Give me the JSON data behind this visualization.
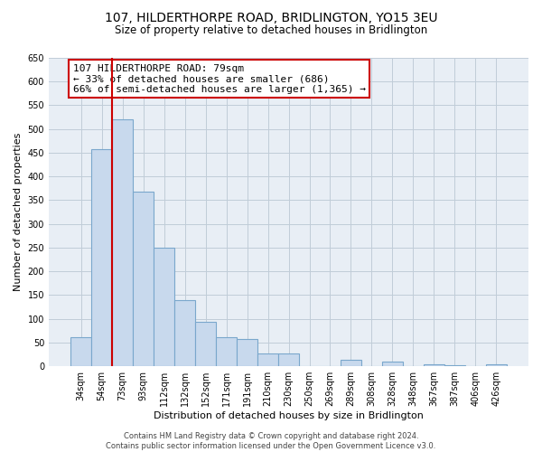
{
  "title": "107, HILDERTHORPE ROAD, BRIDLINGTON, YO15 3EU",
  "subtitle": "Size of property relative to detached houses in Bridlington",
  "xlabel": "Distribution of detached houses by size in Bridlington",
  "ylabel": "Number of detached properties",
  "bar_labels": [
    "34sqm",
    "54sqm",
    "73sqm",
    "93sqm",
    "112sqm",
    "132sqm",
    "152sqm",
    "171sqm",
    "191sqm",
    "210sqm",
    "230sqm",
    "250sqm",
    "269sqm",
    "289sqm",
    "308sqm",
    "328sqm",
    "348sqm",
    "367sqm",
    "387sqm",
    "406sqm",
    "426sqm"
  ],
  "bar_values": [
    62,
    457,
    521,
    369,
    250,
    140,
    93,
    62,
    57,
    27,
    28,
    0,
    0,
    13,
    0,
    10,
    0,
    5,
    3,
    0,
    5
  ],
  "bar_color": "#c8d9ed",
  "bar_edge_color": "#7aa7cc",
  "vline_index": 2,
  "vline_color": "#cc0000",
  "annotation_text_line1": "107 HILDERTHORPE ROAD: 79sqm",
  "annotation_text_line2": "← 33% of detached houses are smaller (686)",
  "annotation_text_line3": "66% of semi-detached houses are larger (1,365) →",
  "annotation_box_color": "#ffffff",
  "annotation_border_color": "#cc0000",
  "ylim": [
    0,
    650
  ],
  "yticks": [
    0,
    50,
    100,
    150,
    200,
    250,
    300,
    350,
    400,
    450,
    500,
    550,
    600,
    650
  ],
  "footer_line1": "Contains HM Land Registry data © Crown copyright and database right 2024.",
  "footer_line2": "Contains public sector information licensed under the Open Government Licence v3.0.",
  "bg_color": "#ffffff",
  "plot_bg_color": "#e8eef5",
  "grid_color": "#c0ccd8",
  "title_fontsize": 10,
  "subtitle_fontsize": 8.5,
  "axis_label_fontsize": 8,
  "tick_fontsize": 7,
  "annotation_fontsize": 8,
  "footer_fontsize": 6
}
